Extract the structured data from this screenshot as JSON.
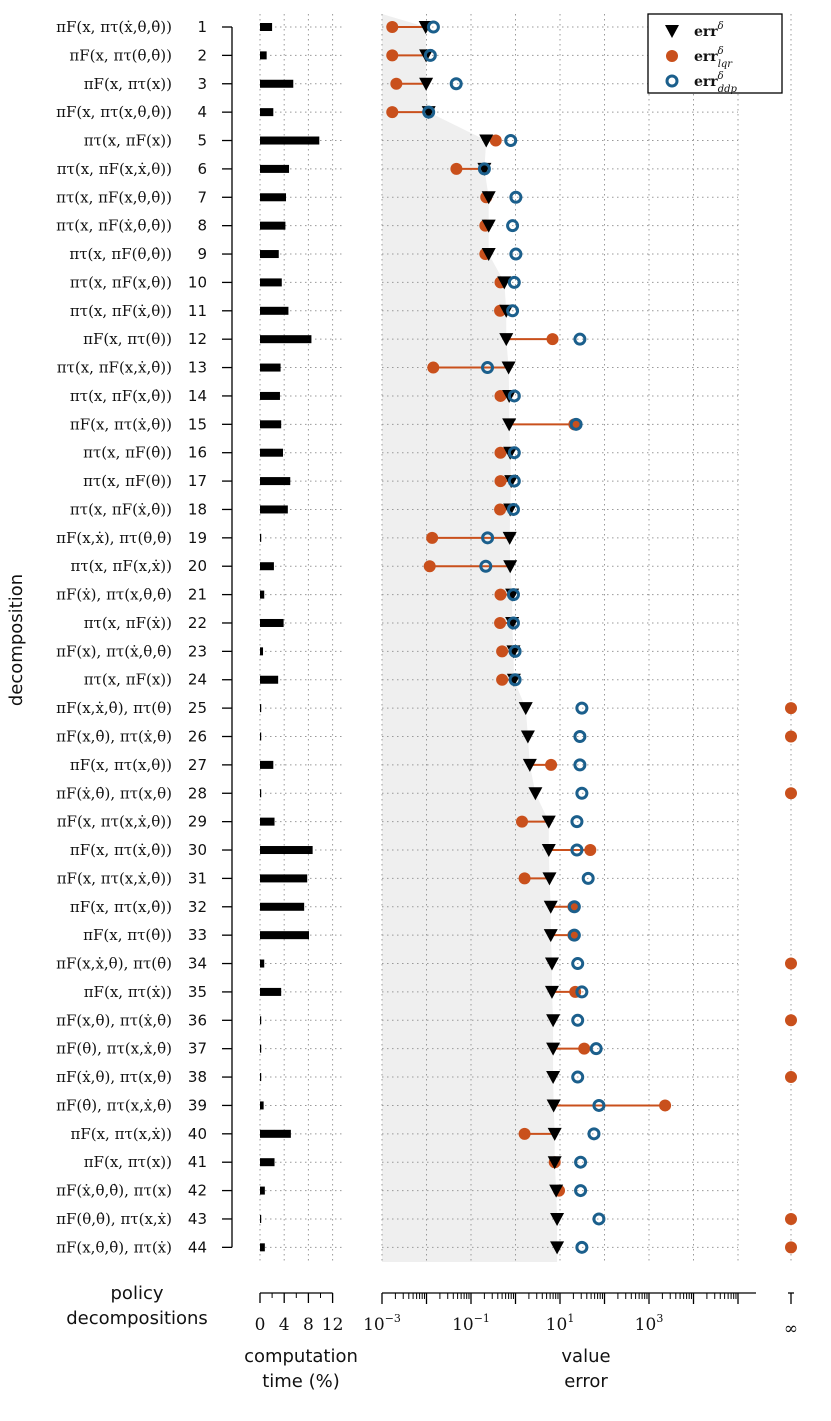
{
  "chart_data": {
    "type": "dot-range + bar",
    "ylabel": "decomposition",
    "ytitle": [
      "policy",
      "decompositions"
    ],
    "bar_axis": {
      "label": [
        "computation",
        "time (%)"
      ],
      "ticks": [
        "0",
        "4",
        "8",
        "12"
      ],
      "range": [
        0,
        12
      ]
    },
    "err_axis": {
      "label": [
        "value",
        "error"
      ],
      "scale": "log",
      "range_exp": [
        -3,
        5
      ],
      "ticks": [
        {
          "exp": -3,
          "text": "10",
          "sup": "−3"
        },
        {
          "exp": -1,
          "text": "10",
          "sup": "−1"
        },
        {
          "exp": 1,
          "text": "10",
          "sup": "1"
        },
        {
          "exp": 3,
          "text": "10",
          "sup": "3"
        }
      ],
      "inf_label": "∞"
    },
    "legend": [
      {
        "key": "err",
        "base": "err",
        "sup": "δ",
        "sub": ""
      },
      {
        "key": "lqr",
        "base": "err",
        "sup": "δ",
        "sub": "lqr"
      },
      {
        "key": "ddp",
        "base": "err",
        "sup": "δ",
        "sub": "ddp"
      }
    ],
    "colors": {
      "err": "#000000",
      "lqr": "#c9501c",
      "ddp": "#1b5f8c",
      "band": "#efefef",
      "grid": "#999999"
    },
    "rows": [
      {
        "id": 1,
        "label": "πF(x, πτ(ẋ,θ,θ̇))",
        "time": 2.0,
        "err": 0.0096,
        "lqr": 0.0017,
        "ddp": 0.0143
      },
      {
        "id": 2,
        "label": "πF(x, πτ(θ,θ̇))",
        "time": 1.1,
        "err": 0.0098,
        "lqr": 0.0017,
        "ddp": 0.0122
      },
      {
        "id": 3,
        "label": "πF(x, πτ(x))",
        "time": 5.5,
        "err": 0.0098,
        "lqr": 0.0021,
        "ddp": 0.0465
      },
      {
        "id": 4,
        "label": "πF(x, πτ(x,θ,θ̇))",
        "time": 2.2,
        "err": 0.0112,
        "lqr": 0.0017,
        "ddp": 0.0112
      },
      {
        "id": 5,
        "label": "πτ(x, πF(x))",
        "time": 9.8,
        "err": 0.22,
        "lqr": 0.36,
        "ddp": 0.78
      },
      {
        "id": 6,
        "label": "πτ(x, πF(x,ẋ,θ))",
        "time": 4.8,
        "err": 0.2,
        "lqr": 0.047,
        "ddp": 0.2
      },
      {
        "id": 7,
        "label": "πτ(x, πF(x,θ,θ̇))",
        "time": 4.3,
        "err": 0.25,
        "lqr": 0.22,
        "ddp": 1.02
      },
      {
        "id": 8,
        "label": "πτ(x, πF(ẋ,θ,θ̇))",
        "time": 4.2,
        "err": 0.25,
        "lqr": 0.21,
        "ddp": 0.86
      },
      {
        "id": 9,
        "label": "πτ(x, πF(θ,θ̇))",
        "time": 3.1,
        "err": 0.25,
        "lqr": 0.21,
        "ddp": 1.02
      },
      {
        "id": 10,
        "label": "πτ(x, πF(x,θ))",
        "time": 3.6,
        "err": 0.56,
        "lqr": 0.46,
        "ddp": 0.94
      },
      {
        "id": 11,
        "label": "πτ(x, πF(ẋ,θ))",
        "time": 4.7,
        "err": 0.62,
        "lqr": 0.45,
        "ddp": 0.86
      },
      {
        "id": 12,
        "label": "πF(x, πτ(θ))",
        "time": 8.5,
        "err": 0.62,
        "lqr": 6.8,
        "ddp": 28
      },
      {
        "id": 13,
        "label": "πτ(x, πF(x,ẋ,θ̇))",
        "time": 3.4,
        "err": 0.7,
        "lqr": 0.0142,
        "ddp": 0.235
      },
      {
        "id": 14,
        "label": "πτ(x, πF(x,θ̇))",
        "time": 3.3,
        "err": 0.72,
        "lqr": 0.46,
        "ddp": 0.94
      },
      {
        "id": 15,
        "label": "πF(x, πτ(ẋ,θ))",
        "time": 3.5,
        "err": 0.72,
        "lqr": 21,
        "ddp": 23
      },
      {
        "id": 16,
        "label": "πτ(x, πF(θ̇))",
        "time": 3.8,
        "err": 0.76,
        "lqr": 0.46,
        "ddp": 0.94
      },
      {
        "id": 17,
        "label": "πτ(x, πF(θ))",
        "time": 5.0,
        "err": 0.8,
        "lqr": 0.46,
        "ddp": 0.94
      },
      {
        "id": 18,
        "label": "πτ(x, πF(ẋ,θ̇))",
        "time": 4.6,
        "err": 0.76,
        "lqr": 0.45,
        "ddp": 0.9
      },
      {
        "id": 19,
        "label": "πF(x,ẋ), πτ(θ,θ̇)",
        "time": 0.2,
        "err": 0.74,
        "lqr": 0.0134,
        "ddp": 0.236
      },
      {
        "id": 20,
        "label": "πτ(x, πF(x,ẋ))",
        "time": 2.3,
        "err": 0.76,
        "lqr": 0.0118,
        "ddp": 0.215
      },
      {
        "id": 21,
        "label": "πF(ẋ), πτ(x,θ,θ̇)",
        "time": 0.7,
        "err": 0.84,
        "lqr": 0.46,
        "ddp": 0.9
      },
      {
        "id": 22,
        "label": "πτ(x, πF(ẋ))",
        "time": 3.9,
        "err": 0.84,
        "lqr": 0.45,
        "ddp": 0.9
      },
      {
        "id": 23,
        "label": "πF(x), πτ(ẋ,θ,θ̇)",
        "time": 0.5,
        "err": 0.9,
        "lqr": 0.5,
        "ddp": 0.98
      },
      {
        "id": 24,
        "label": "πτ(x, πF(x))",
        "time": 3.0,
        "err": 0.92,
        "lqr": 0.5,
        "ddp": 0.98
      },
      {
        "id": 25,
        "label": "πF(x,ẋ,θ̇), πτ(θ)",
        "time": 0.15,
        "err": 1.7,
        "lqr": "inf",
        "ddp": 31
      },
      {
        "id": 26,
        "label": "πF(x,θ̇), πτ(ẋ,θ)",
        "time": 0.15,
        "err": 1.9,
        "lqr": "inf",
        "ddp": 28
      },
      {
        "id": 27,
        "label": "πF(x, πτ(x,θ))",
        "time": 2.2,
        "err": 2.1,
        "lqr": 6.3,
        "ddp": 28
      },
      {
        "id": 28,
        "label": "πF(ẋ,θ̇), πτ(x,θ)",
        "time": 0.15,
        "err": 2.8,
        "lqr": "inf",
        "ddp": 31
      },
      {
        "id": 29,
        "label": "πF(x, πτ(x,ẋ,θ))",
        "time": 2.4,
        "err": 5.6,
        "lqr": 1.4,
        "ddp": 24
      },
      {
        "id": 30,
        "label": "πF(x, πτ(ẋ,θ̇))",
        "time": 8.7,
        "err": 5.6,
        "lqr": 48,
        "ddp": 24
      },
      {
        "id": 31,
        "label": "πF(x, πτ(x,ẋ,θ̇))",
        "time": 7.8,
        "err": 5.8,
        "lqr": 1.6,
        "ddp": 43
      },
      {
        "id": 32,
        "label": "πF(x, πτ(x,θ̇))",
        "time": 7.3,
        "err": 6.2,
        "lqr": 20,
        "ddp": 21
      },
      {
        "id": 33,
        "label": "πF(x, πτ(θ̇))",
        "time": 8.1,
        "err": 6.2,
        "lqr": 20,
        "ddp": 21
      },
      {
        "id": 34,
        "label": "πF(x,ẋ,θ), πτ(θ̇)",
        "time": 0.7,
        "err": 6.6,
        "lqr": "inf",
        "ddp": 25
      },
      {
        "id": 35,
        "label": "πF(x, πτ(ẋ))",
        "time": 3.5,
        "err": 6.6,
        "lqr": 22,
        "ddp": 31
      },
      {
        "id": 36,
        "label": "πF(x,θ), πτ(ẋ,θ̇)",
        "time": 0.15,
        "err": 7.0,
        "lqr": "inf",
        "ddp": 25
      },
      {
        "id": 37,
        "label": "πF(θ), πτ(x,ẋ,θ̇)",
        "time": 0.15,
        "err": 7.0,
        "lqr": 35,
        "ddp": 65
      },
      {
        "id": 38,
        "label": "πF(ẋ,θ), πτ(x,θ̇)",
        "time": 0.15,
        "err": 7.0,
        "lqr": "inf",
        "ddp": 25
      },
      {
        "id": 39,
        "label": "πF(θ̇), πτ(x,ẋ,θ)",
        "time": 0.6,
        "err": 7.2,
        "lqr": 2300,
        "ddp": 75
      },
      {
        "id": 40,
        "label": "πF(x, πτ(x,ẋ))",
        "time": 5.1,
        "err": 7.6,
        "lqr": 1.6,
        "ddp": 58
      },
      {
        "id": 41,
        "label": "πF(x, πτ(x))",
        "time": 2.4,
        "err": 7.6,
        "lqr": 7.6,
        "ddp": 29
      },
      {
        "id": 42,
        "label": "πF(ẋ,θ,θ̇), πτ(x)",
        "time": 0.8,
        "err": 8.2,
        "lqr": 9.5,
        "ddp": 29
      },
      {
        "id": 43,
        "label": "πF(θ,θ̇), πτ(x,ẋ)",
        "time": 0.15,
        "err": 8.6,
        "lqr": "inf",
        "ddp": 75
      },
      {
        "id": 44,
        "label": "πF(x,θ,θ̇), πτ(ẋ)",
        "time": 0.8,
        "err": 8.6,
        "lqr": "inf",
        "ddp": 31
      }
    ]
  }
}
